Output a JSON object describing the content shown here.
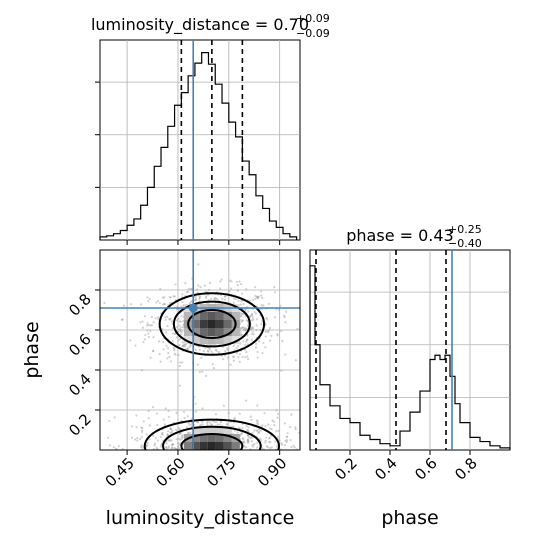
{
  "chart_data": {
    "type": "corner",
    "truth_color": "#4682b4",
    "parameters": [
      "luminosity_distance",
      "phase"
    ],
    "truths": {
      "luminosity_distance": 0.645,
      "phase": 0.71
    },
    "panels": {
      "luminosity_distance_hist": {
        "type": "histogram",
        "title": {
          "base": "luminosity_distance = 0.70",
          "sup": "+0.09",
          "sub": "−0.09"
        },
        "xlim": [
          0.37,
          0.96
        ],
        "bin_edges": [
          0.37,
          0.39,
          0.41,
          0.43,
          0.45,
          0.47,
          0.49,
          0.51,
          0.53,
          0.55,
          0.57,
          0.59,
          0.61,
          0.63,
          0.65,
          0.67,
          0.69,
          0.71,
          0.73,
          0.75,
          0.77,
          0.79,
          0.81,
          0.83,
          0.85,
          0.87,
          0.89,
          0.91,
          0.93,
          0.95
        ],
        "counts": [
          3,
          4,
          6,
          9,
          14,
          20,
          33,
          50,
          70,
          88,
          108,
          128,
          140,
          156,
          168,
          178,
          167,
          148,
          130,
          112,
          98,
          75,
          62,
          42,
          30,
          18,
          12,
          6,
          3
        ],
        "quantiles": [
          0.61,
          0.7,
          0.79
        ],
        "ylim": [
          0,
          190
        ]
      },
      "phase_hist": {
        "type": "histogram",
        "title": {
          "base": "phase = 0.43",
          "sup": "+0.25",
          "sub": "−0.40"
        },
        "xlim": [
          0.0,
          1.0
        ],
        "bin_edges": [
          0.0,
          0.025,
          0.05,
          0.1,
          0.15,
          0.2,
          0.25,
          0.3,
          0.35,
          0.4,
          0.45,
          0.5,
          0.55,
          0.6,
          0.625,
          0.65,
          0.675,
          0.7,
          0.725,
          0.75,
          0.8,
          0.85,
          0.9,
          0.95,
          1.0
        ],
        "counts": [
          175,
          100,
          62,
          42,
          30,
          26,
          14,
          10,
          6,
          4,
          18,
          36,
          56,
          86,
          90,
          86,
          90,
          70,
          44,
          26,
          12,
          8,
          4,
          2
        ],
        "quantiles": [
          0.03,
          0.43,
          0.68
        ],
        "ylim": [
          0,
          190
        ],
        "xticks": [
          0.2,
          0.4,
          0.6,
          0.8
        ],
        "xlabel": "phase"
      },
      "joint": {
        "type": "2d-density",
        "xlim": [
          0.37,
          0.96
        ],
        "ylim": [
          0.0,
          1.0
        ],
        "xticks": [
          0.45,
          0.6,
          0.75,
          0.9
        ],
        "yticks": [
          0.2,
          0.4,
          0.6,
          0.8
        ],
        "xlabel": "luminosity_distance",
        "ylabel": "phase",
        "modes": [
          {
            "x": 0.7,
            "y": 0.63,
            "sx": 0.07,
            "sy": 0.07,
            "weight": 1.0
          },
          {
            "x": 0.7,
            "y": 0.02,
            "sx": 0.09,
            "sy": 0.06,
            "weight": 1.0
          }
        ],
        "contour_levels": [
          "1 sigma",
          "1.5 sigma",
          "2 sigma"
        ]
      }
    }
  }
}
